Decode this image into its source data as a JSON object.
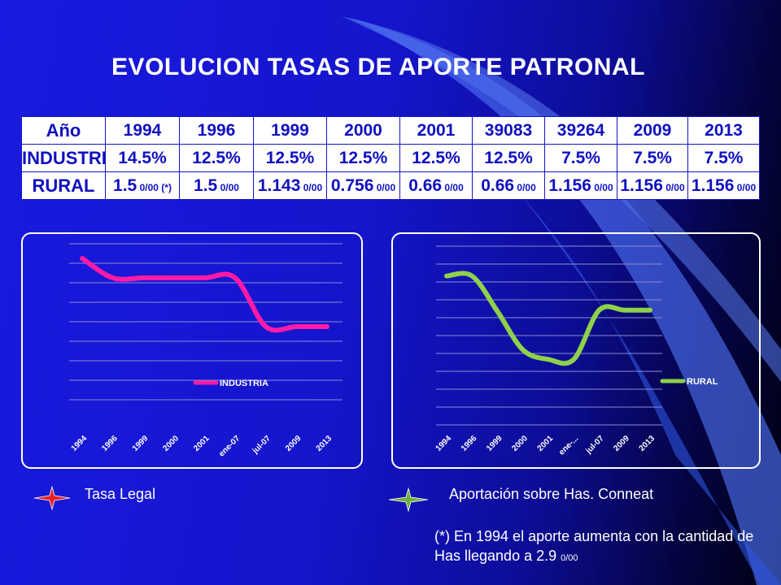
{
  "title": "EVOLUCION   TASAS DE APORTE PATRONAL",
  "table": {
    "header": [
      "Año",
      "1994",
      "1996",
      "1999",
      "2000",
      "2001",
      "39083",
      "39264",
      "2009",
      "2013"
    ],
    "industria": [
      "INDUSTRIA",
      "14.5%",
      "12.5%",
      "12.5%",
      "12.5%",
      "12.5%",
      "12.5%",
      "7.5%",
      "7.5%",
      "7.5%"
    ],
    "rural_label": "RURAL",
    "rural": [
      {
        "value": "1.5",
        "unit": "0/00 (*)"
      },
      {
        "value": "1.5",
        "unit": "0/00"
      },
      {
        "value": "1.143",
        "unit": "0/00"
      },
      {
        "value": "0.756",
        "unit": "0/00"
      },
      {
        "value": "0.66",
        "unit": "0/00"
      },
      {
        "value": "0.66",
        "unit": "0/00"
      },
      {
        "value": "1.156",
        "unit": "0/00"
      },
      {
        "value": "1.156",
        "unit": "0/00"
      },
      {
        "value": "1.156",
        "unit": "0/00"
      }
    ]
  },
  "chart_data": [
    {
      "type": "line",
      "categories": [
        "1994",
        "1996",
        "1999",
        "2000",
        "2001",
        "ene-07",
        "jul-07",
        "2009",
        "2013"
      ],
      "series": [
        {
          "name": "INDUSTRIA",
          "values": [
            14.5,
            12.5,
            12.5,
            12.5,
            12.5,
            12.5,
            7.5,
            7.5,
            7.5
          ]
        }
      ],
      "ylim": [
        0,
        16
      ],
      "grid": true,
      "legend": "right",
      "color": "#ff1aa8"
    },
    {
      "type": "line",
      "categories": [
        "1994",
        "1996",
        "1999",
        "2000",
        "2001",
        "ene-...",
        "jul-07",
        "2009",
        "2013"
      ],
      "series": [
        {
          "name": "RURAL",
          "values": [
            1.5,
            1.5,
            1.143,
            0.756,
            0.66,
            0.66,
            1.156,
            1.156,
            1.156
          ]
        }
      ],
      "ylim": [
        0,
        1.8
      ],
      "grid": true,
      "legend": "right",
      "color": "#8ed14a"
    }
  ],
  "legend_bottom": {
    "left_label": "Tasa Legal",
    "right_label": "Aportación sobre Has. Conneat",
    "left_color": "#e82020",
    "right_color": "#6fae3a"
  },
  "note": {
    "text": "(*) En 1994 el aporte aumenta con la cantidad de Has llegando a 2.9",
    "unit": "0/00"
  }
}
